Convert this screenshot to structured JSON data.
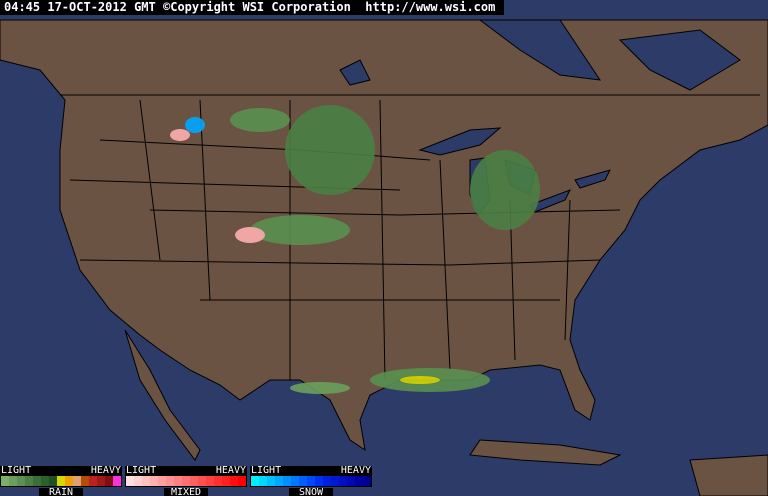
{
  "header": {
    "time": "04:45",
    "date": "17-OCT-2012",
    "zone": "GMT",
    "copyright": "©Copyright WSI Corporation",
    "url": "http://www.wsi.com"
  },
  "colors": {
    "ocean": "#2d3b69",
    "land": "#6b5344",
    "borders": "#000000"
  },
  "legends": [
    {
      "low": "LIGHT",
      "high": "HEAVY",
      "label": "RAIN",
      "colors": [
        "#7ab06a",
        "#6aa05c",
        "#5a9050",
        "#4a8044",
        "#3a7038",
        "#2c602e",
        "#1e5022",
        "#d8d800",
        "#f0a000",
        "#e0a070",
        "#b05000",
        "#c02020",
        "#a01818",
        "#801010",
        "#ff30e0"
      ]
    },
    {
      "low": "LIGHT",
      "high": "HEAVY",
      "label": "MIXED",
      "colors": [
        "#ffe0e0",
        "#ffd0d0",
        "#ffc0c0",
        "#ffb0b0",
        "#ffa0a0",
        "#ff9090",
        "#ff8080",
        "#ff7070",
        "#ff6060",
        "#ff5050",
        "#ff4040",
        "#ff3030",
        "#ff2020",
        "#ff1010",
        "#ff0000"
      ]
    },
    {
      "low": "LIGHT",
      "high": "HEAVY",
      "label": "SNOW",
      "colors": [
        "#00f0ff",
        "#00d8ff",
        "#00c0ff",
        "#00a8ff",
        "#0090ff",
        "#0078ff",
        "#0060ff",
        "#0048ff",
        "#0030f0",
        "#0020e0",
        "#0018d0",
        "#0010c0",
        "#0008b0",
        "#0000a0",
        "#000090"
      ]
    }
  ]
}
